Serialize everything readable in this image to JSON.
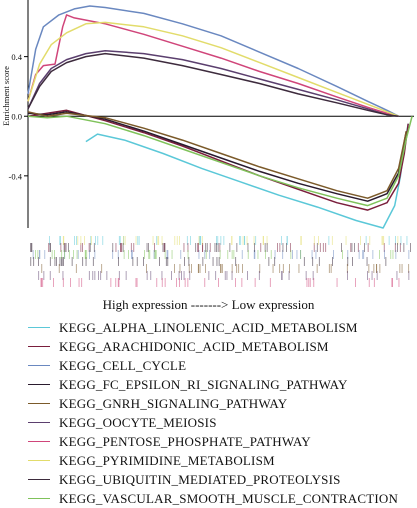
{
  "chart_data": {
    "type": "line",
    "ylabel": "Enrichment score",
    "ylim": [
      -0.75,
      0.78
    ],
    "yticks": [
      {
        "value": 0.4,
        "label": "0.4"
      },
      {
        "value": 0.0,
        "label": "0.0"
      },
      {
        "value": -0.4,
        "label": "-0.4"
      }
    ],
    "xlim": [
      0,
      100
    ],
    "caption": "High expression -------> Low expression",
    "series": [
      {
        "name": "KEGG_ALPHA_LINOLENIC_ACID_METABOLISM",
        "color": "#5bc8d8",
        "x": [
          15,
          18,
          25,
          35,
          45,
          55,
          65,
          75,
          85,
          92,
          95,
          96.5,
          97.5,
          98.5
        ],
        "y": [
          -0.17,
          -0.12,
          -0.16,
          -0.25,
          -0.35,
          -0.44,
          -0.53,
          -0.61,
          -0.7,
          -0.75,
          -0.6,
          -0.4,
          -0.2,
          -0.05
        ]
      },
      {
        "name": "KEGG_ARACHIDONIC_ACID_METABOLISM",
        "color": "#7a1e3c",
        "x": [
          0,
          5,
          10,
          20,
          30,
          40,
          50,
          60,
          70,
          80,
          88,
          93,
          96,
          97.5,
          98.5
        ],
        "y": [
          0.0,
          0.02,
          0.04,
          -0.03,
          -0.11,
          -0.2,
          -0.3,
          -0.4,
          -0.49,
          -0.58,
          -0.63,
          -0.58,
          -0.45,
          -0.25,
          -0.05
        ]
      },
      {
        "name": "KEGG_CELL_CYCLE",
        "color": "#6a88c0",
        "x": [
          0,
          2,
          4,
          8,
          12,
          16,
          20,
          30,
          40,
          50,
          60,
          70,
          80,
          88,
          93,
          96
        ],
        "y": [
          0.15,
          0.45,
          0.6,
          0.68,
          0.72,
          0.74,
          0.73,
          0.69,
          0.62,
          0.54,
          0.43,
          0.32,
          0.2,
          0.1,
          0.04,
          0.0
        ]
      },
      {
        "name": "KEGG_FC_EPSILON_RI_SIGNALING_PATHWAY",
        "color": "#2a1b2e",
        "x": [
          0,
          5,
          10,
          20,
          30,
          40,
          50,
          60,
          70,
          80,
          88,
          93,
          96,
          98
        ],
        "y": [
          0.02,
          0.01,
          0.03,
          -0.02,
          -0.1,
          -0.19,
          -0.28,
          -0.37,
          -0.45,
          -0.52,
          -0.57,
          -0.52,
          -0.38,
          -0.1
        ]
      },
      {
        "name": "KEGG_GNRH_SIGNALING_PATHWAY",
        "color": "#7b5a2a",
        "x": [
          0,
          5,
          10,
          20,
          30,
          40,
          50,
          60,
          70,
          80,
          88,
          93,
          96,
          98
        ],
        "y": [
          0.03,
          0.0,
          0.02,
          -0.01,
          -0.08,
          -0.16,
          -0.25,
          -0.34,
          -0.42,
          -0.5,
          -0.55,
          -0.5,
          -0.35,
          -0.1
        ]
      },
      {
        "name": "KEGG_OOCYTE_MEIOSIS",
        "color": "#5b3f6e",
        "x": [
          0,
          3,
          6,
          10,
          15,
          20,
          30,
          40,
          50,
          60,
          70,
          80,
          88,
          93,
          96
        ],
        "y": [
          0.05,
          0.22,
          0.32,
          0.38,
          0.42,
          0.44,
          0.42,
          0.38,
          0.32,
          0.25,
          0.18,
          0.11,
          0.05,
          0.01,
          0.0
        ]
      },
      {
        "name": "KEGG_PENTOSE_PHOSPHATE_PATHWAY",
        "color": "#d0457a",
        "x": [
          0,
          2,
          4,
          7,
          9,
          10,
          12,
          16,
          20,
          30,
          40,
          50,
          60,
          70,
          80,
          88,
          93,
          96
        ],
        "y": [
          0.1,
          0.28,
          0.34,
          0.35,
          0.6,
          0.68,
          0.66,
          0.64,
          0.62,
          0.55,
          0.47,
          0.39,
          0.3,
          0.22,
          0.13,
          0.06,
          0.02,
          0.0
        ]
      },
      {
        "name": "KEGG_PYRIMIDINE_METABOLISM",
        "color": "#e2dc6b",
        "x": [
          0,
          3,
          6,
          10,
          15,
          20,
          30,
          40,
          50,
          60,
          70,
          80,
          88,
          93,
          96
        ],
        "y": [
          0.1,
          0.35,
          0.48,
          0.56,
          0.62,
          0.63,
          0.6,
          0.54,
          0.46,
          0.36,
          0.26,
          0.16,
          0.08,
          0.03,
          0.0
        ]
      },
      {
        "name": "KEGG_UBIQUITIN_MEDIATED_PROTEOLYSIS",
        "color": "#3d2b3d",
        "x": [
          0,
          3,
          6,
          10,
          15,
          20,
          30,
          40,
          50,
          60,
          70,
          80,
          88,
          93,
          96
        ],
        "y": [
          0.05,
          0.2,
          0.3,
          0.36,
          0.4,
          0.42,
          0.39,
          0.34,
          0.28,
          0.22,
          0.15,
          0.09,
          0.04,
          0.01,
          0.0
        ]
      },
      {
        "name": "KEGG_VASCULAR_SMOOTH_MUSCLE_CONTRACTION",
        "color": "#7fc25a",
        "x": [
          0,
          5,
          10,
          20,
          30,
          40,
          50,
          60,
          70,
          80,
          88,
          93,
          96,
          98,
          99.5
        ],
        "y": [
          0.0,
          -0.01,
          0.0,
          -0.05,
          -0.13,
          -0.22,
          -0.31,
          -0.4,
          -0.48,
          -0.55,
          -0.6,
          -0.55,
          -0.4,
          -0.15,
          0.0
        ]
      }
    ]
  }
}
